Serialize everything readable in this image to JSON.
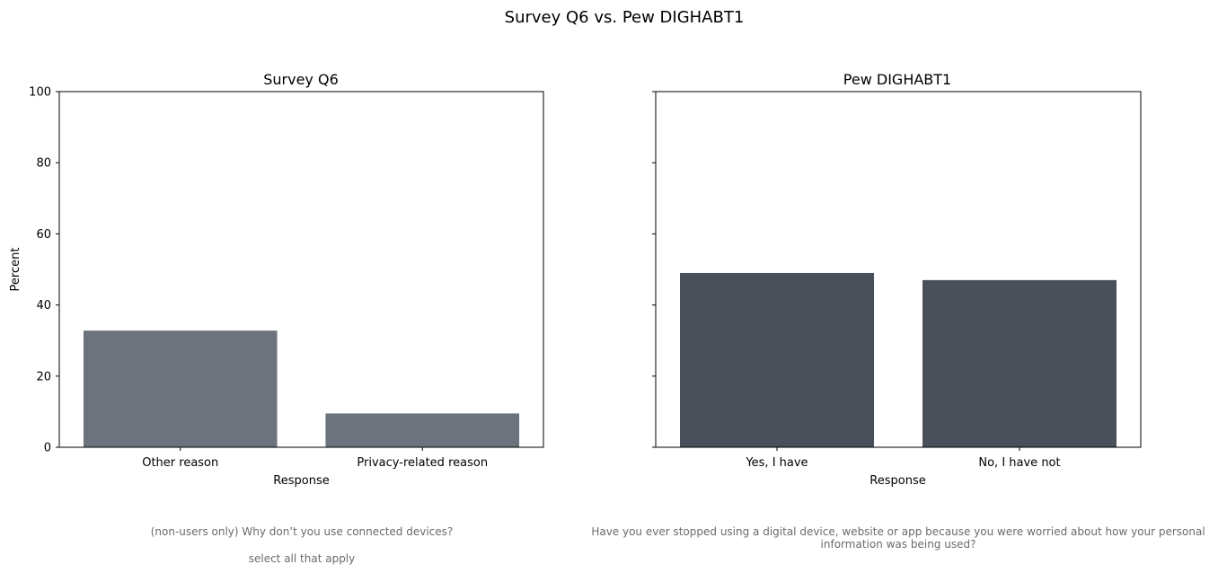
{
  "figure_title": "Survey Q6 vs. Pew DIGHABT1",
  "chart_data": [
    {
      "type": "bar",
      "title": "Survey Q6",
      "xlabel": "Response",
      "ylabel": "Percent",
      "ylim": [
        0,
        100
      ],
      "yticks": [
        0,
        20,
        40,
        60,
        80,
        100
      ],
      "categories": [
        "Other reason",
        "Privacy-related reason"
      ],
      "values": [
        32.8,
        9.5
      ],
      "color": "#6c737d",
      "grid": false,
      "notes": [
        "(non-users only) Why don’t you use connected devices?",
        "select all that apply"
      ]
    },
    {
      "type": "bar",
      "title": "Pew DIGHABT1",
      "xlabel": "Response",
      "ylabel": "",
      "ylim": [
        0,
        100
      ],
      "yticks": [
        0,
        20,
        40,
        60,
        80,
        100
      ],
      "categories": [
        "Yes, I have",
        "No, I have not"
      ],
      "values": [
        49,
        47
      ],
      "color": "#4a5059",
      "grid": false,
      "notes": [
        "Have you ever stopped using a digital device, website or app because you were worried about how your personal information was being used?"
      ]
    }
  ]
}
